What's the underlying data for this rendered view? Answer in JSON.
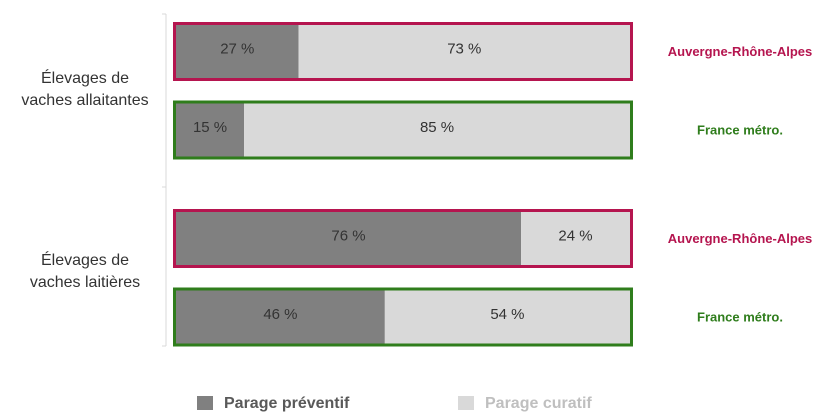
{
  "chart_data": {
    "type": "bar",
    "orientation": "horizontal",
    "stacked": true,
    "groups": [
      "Élevages de\nvaches allaitantes",
      "Élevages de\nvaches laitières"
    ],
    "categories": [
      "Auvergne-Rhône-Alpes",
      "France métro.",
      "Auvergne-Rhône-Alpes",
      "France métro."
    ],
    "category_colors": [
      "#b5154f",
      "#2f7d1c",
      "#b5154f",
      "#2f7d1c"
    ],
    "xlim": [
      0,
      100
    ],
    "series": [
      {
        "name": "Parage préventif",
        "color": "#808080",
        "legend_color": "#595959",
        "values": [
          27,
          15,
          76,
          46
        ],
        "value_labels": [
          "27 %",
          "15 %",
          "76 %",
          "46 %"
        ]
      },
      {
        "name": "Parage curatif",
        "color": "#d9d9d9",
        "legend_color": "#bfbfbf",
        "values": [
          73,
          85,
          24,
          54
        ],
        "value_labels": [
          "73 %",
          "85 %",
          "24 %",
          "54 %"
        ]
      }
    ]
  }
}
